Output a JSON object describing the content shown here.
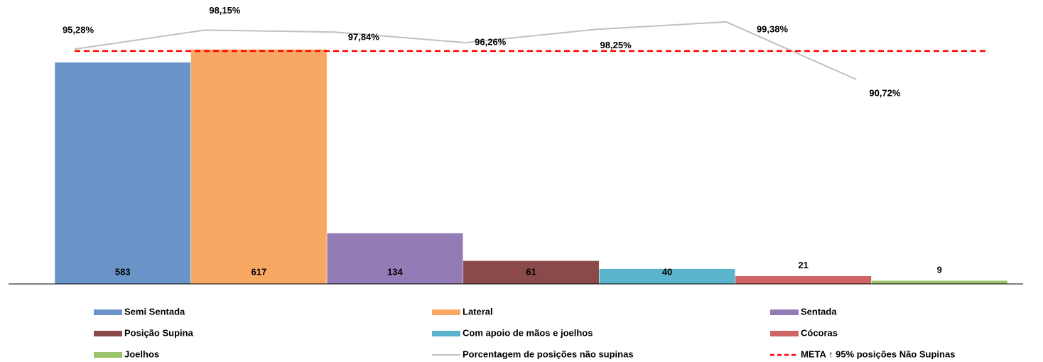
{
  "chart_data": {
    "type": "bar",
    "ylim": [
      0,
      700
    ],
    "y2lim": [
      60,
      100
    ],
    "series": [
      {
        "name": "Semi Sentada",
        "color": "#6a94c8",
        "values": [
          583
        ]
      },
      {
        "name": "Lateral",
        "color": "#f9a864",
        "values": [
          617
        ]
      },
      {
        "name": "Sentada",
        "color": "#937cb5",
        "values": [
          134
        ]
      },
      {
        "name": "Posição Supina",
        "color": "#8b4a4a",
        "values": [
          61
        ]
      },
      {
        "name": "Com apoio de mãos e joelhos",
        "color": "#5ab5cc",
        "values": [
          40
        ]
      },
      {
        "name": "Cócoras",
        "color": "#d06464",
        "values": [
          21
        ]
      },
      {
        "name": "Joelhos",
        "color": "#9bc46a",
        "values": [
          9
        ]
      },
      {
        "name": "Porcentagem de posições não supinas",
        "color": "#c0c0c0",
        "type": "line",
        "axis": "y2",
        "values": [
          95.28,
          98.15,
          97.84,
          96.26,
          98.25,
          99.38,
          90.72
        ],
        "value_labels": [
          "95,28%",
          "98,15%",
          "97,84%",
          "96,26%",
          "98,25%",
          "99,38%",
          "90,72%"
        ]
      },
      {
        "name": "META ↑ 95% posições Não Supinas",
        "color": "#ff0000",
        "type": "target",
        "axis": "y2",
        "values": [
          95
        ]
      }
    ]
  }
}
